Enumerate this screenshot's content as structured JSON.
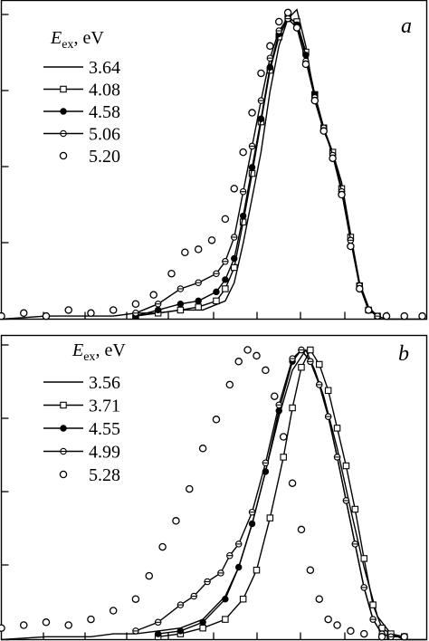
{
  "chart_data": [
    {
      "type": "line",
      "panel_label": "a",
      "legend_title_main": "E",
      "legend_title_sub": "ex",
      "legend_title_suffix": ", eV",
      "legend_position": "top-left",
      "xlim": [
        0,
        9.5
      ],
      "ylim": [
        0,
        1.05
      ],
      "grid": false,
      "series": [
        {
          "name": "3.64",
          "marker": "none",
          "x": [
            0,
            1,
            2,
            2.5,
            3,
            3.5,
            4,
            4.5,
            5,
            5.2,
            5.4,
            5.6,
            5.8,
            6.0,
            6.2,
            6.4,
            6.6,
            6.8,
            7.0,
            7.2,
            7.4,
            7.6,
            7.8,
            8.0,
            8.2,
            8.4,
            8.6,
            9.0,
            9.5
          ],
          "y": [
            0,
            0.01,
            0.01,
            0.01,
            0.02,
            0.02,
            0.03,
            0.03,
            0.06,
            0.12,
            0.25,
            0.4,
            0.55,
            0.75,
            0.9,
            0.99,
            1.02,
            0.9,
            0.72,
            0.62,
            0.55,
            0.45,
            0.28,
            0.12,
            0.04,
            0.01,
            0,
            0,
            0
          ]
        },
        {
          "name": "4.08",
          "marker": "open-square",
          "x": [
            3.0,
            3.5,
            4.0,
            4.4,
            4.8,
            5.0,
            5.2,
            5.4,
            5.6,
            5.8,
            6.0,
            6.2,
            6.4,
            6.6,
            6.8,
            7.0,
            7.2,
            7.4,
            7.6,
            7.8,
            8.0,
            8.2,
            8.4
          ],
          "y": [
            0.01,
            0.02,
            0.03,
            0.04,
            0.06,
            0.1,
            0.17,
            0.32,
            0.48,
            0.65,
            0.82,
            0.93,
            0.99,
            0.98,
            0.88,
            0.74,
            0.63,
            0.55,
            0.43,
            0.27,
            0.11,
            0.03,
            0.01
          ]
        },
        {
          "name": "4.58",
          "marker": "filled-circle",
          "x": [
            3.0,
            3.5,
            4.0,
            4.4,
            4.8,
            5.0,
            5.2,
            5.4,
            5.6,
            5.8,
            6.0,
            6.2,
            6.4,
            6.6,
            6.8,
            7.0,
            7.2,
            7.4,
            7.6,
            7.8,
            8.0,
            8.2,
            8.4
          ],
          "y": [
            0.01,
            0.03,
            0.05,
            0.06,
            0.09,
            0.13,
            0.2,
            0.34,
            0.5,
            0.66,
            0.83,
            0.94,
            1.0,
            0.97,
            0.87,
            0.74,
            0.63,
            0.54,
            0.42,
            0.26,
            0.11,
            0.03,
            0.01
          ]
        },
        {
          "name": "5.06",
          "marker": "half-circle",
          "x": [
            3.0,
            3.5,
            4.0,
            4.4,
            4.8,
            5.0,
            5.2,
            5.4,
            5.6,
            5.8,
            6.0,
            6.2,
            6.4,
            6.6,
            6.8,
            7.0,
            7.2,
            7.4,
            7.6,
            7.8,
            8.0,
            8.2,
            8.4
          ],
          "y": [
            0.02,
            0.05,
            0.1,
            0.12,
            0.15,
            0.19,
            0.27,
            0.42,
            0.57,
            0.72,
            0.86,
            0.95,
            0.99,
            0.96,
            0.85,
            0.73,
            0.63,
            0.54,
            0.42,
            0.26,
            0.11,
            0.03,
            0.01
          ]
        },
        {
          "name": "5.20",
          "marker": "open-circle",
          "points_only": true,
          "x": [
            0,
            0.5,
            1.0,
            1.5,
            2.0,
            2.5,
            3.0,
            3.4,
            3.8,
            4.1,
            4.4,
            4.7,
            5.0,
            5.2,
            5.4,
            5.6,
            5.8,
            6.0,
            6.2,
            6.4,
            6.6,
            6.8,
            7.0,
            7.2,
            7.4,
            7.6,
            7.8,
            8.0,
            8.2,
            8.6,
            9.0,
            9.4
          ],
          "y": [
            0.01,
            0.02,
            0.01,
            0.03,
            0.02,
            0.03,
            0.05,
            0.08,
            0.15,
            0.22,
            0.23,
            0.26,
            0.33,
            0.43,
            0.55,
            0.68,
            0.81,
            0.9,
            0.98,
            1.01,
            0.96,
            0.84,
            0.72,
            0.62,
            0.53,
            0.41,
            0.24,
            0.1,
            0.03,
            0.01,
            0.01,
            0.01
          ]
        }
      ]
    },
    {
      "type": "line",
      "panel_label": "b",
      "legend_title_main": "E",
      "legend_title_sub": "ex",
      "legend_title_suffix": ", eV",
      "legend_position": "top-left",
      "xlim": [
        0,
        9.5
      ],
      "ylim": [
        0,
        1.05
      ],
      "grid": false,
      "series": [
        {
          "name": "3.56",
          "marker": "none",
          "x": [
            0,
            1,
            2,
            2.5,
            3,
            3.5,
            4,
            4.5,
            5,
            5.3,
            5.6,
            5.9,
            6.2,
            6.5,
            6.8,
            7.0,
            7.2,
            7.5,
            7.8,
            8.1,
            8.4,
            8.7,
            9.0,
            9.5
          ],
          "y": [
            0,
            0.01,
            0.01,
            0.02,
            0.02,
            0.03,
            0.04,
            0.07,
            0.15,
            0.25,
            0.4,
            0.58,
            0.77,
            0.93,
            1.0,
            0.93,
            0.84,
            0.66,
            0.45,
            0.25,
            0.08,
            0.02,
            0,
            0
          ]
        },
        {
          "name": "3.71",
          "marker": "open-square",
          "x": [
            3.5,
            4.0,
            4.5,
            5.0,
            5.4,
            5.7,
            6.0,
            6.3,
            6.5,
            6.7,
            6.9,
            7.1,
            7.3,
            7.5,
            7.7,
            7.9,
            8.1,
            8.3,
            8.5,
            8.7,
            9.0
          ],
          "y": [
            0.01,
            0.02,
            0.04,
            0.07,
            0.14,
            0.24,
            0.42,
            0.63,
            0.8,
            0.94,
            1.0,
            0.95,
            0.86,
            0.73,
            0.6,
            0.45,
            0.28,
            0.12,
            0.04,
            0.02,
            0.01
          ]
        },
        {
          "name": "4.55",
          "marker": "filled-circle",
          "x": [
            3.5,
            4.0,
            4.5,
            5.0,
            5.3,
            5.6,
            5.9,
            6.2,
            6.5,
            6.7,
            6.9,
            7.1,
            7.3,
            7.5,
            7.7,
            7.9,
            8.1,
            8.3,
            8.5,
            8.7,
            9.0
          ],
          "y": [
            0.02,
            0.03,
            0.06,
            0.14,
            0.25,
            0.4,
            0.58,
            0.79,
            0.96,
            1.0,
            0.96,
            0.88,
            0.77,
            0.63,
            0.48,
            0.33,
            0.18,
            0.07,
            0.02,
            0.01,
            0.01
          ]
        },
        {
          "name": "4.99",
          "marker": "half-circle",
          "x": [
            3.0,
            3.5,
            4.0,
            4.3,
            4.6,
            4.9,
            5.1,
            5.3,
            5.6,
            5.9,
            6.2,
            6.5,
            6.7,
            6.9,
            7.1,
            7.3,
            7.5,
            7.7,
            7.9,
            8.1,
            8.3,
            8.5,
            8.7,
            9.0
          ],
          "y": [
            0.03,
            0.06,
            0.12,
            0.15,
            0.2,
            0.23,
            0.29,
            0.33,
            0.44,
            0.61,
            0.81,
            0.97,
            1.0,
            0.96,
            0.88,
            0.77,
            0.63,
            0.48,
            0.33,
            0.18,
            0.07,
            0.02,
            0.01,
            0.01
          ]
        },
        {
          "name": "5.28",
          "marker": "open-circle",
          "points_only": true,
          "x": [
            0,
            0.5,
            1.0,
            1.5,
            2.0,
            2.5,
            3.0,
            3.3,
            3.6,
            3.9,
            4.2,
            4.5,
            4.8,
            5.1,
            5.3,
            5.5,
            5.7,
            5.9,
            6.1,
            6.3,
            6.5,
            6.7,
            6.9,
            7.1,
            7.3,
            7.5,
            7.8,
            8.1,
            8.5,
            9.0
          ],
          "y": [
            0.04,
            0.05,
            0.06,
            0.05,
            0.07,
            0.1,
            0.14,
            0.22,
            0.32,
            0.41,
            0.52,
            0.66,
            0.76,
            0.88,
            0.96,
            1.0,
            0.98,
            0.93,
            0.84,
            0.7,
            0.54,
            0.38,
            0.24,
            0.14,
            0.07,
            0.05,
            0.03,
            0.02,
            0.01,
            0.01
          ]
        }
      ]
    }
  ]
}
